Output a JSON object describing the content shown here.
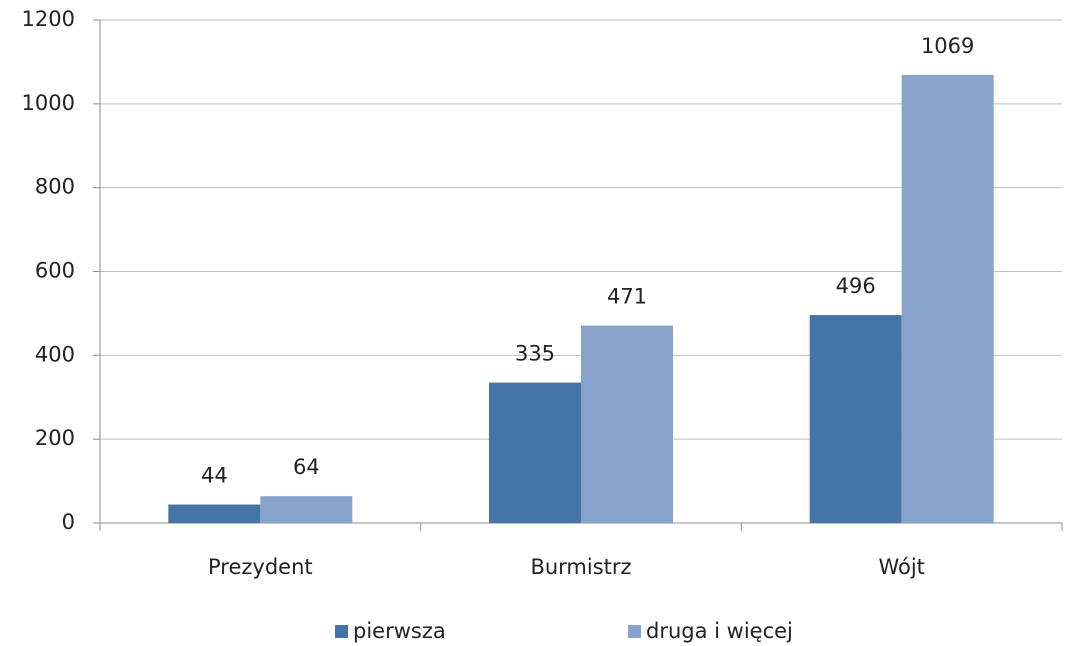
{
  "chart_data": {
    "type": "bar",
    "categories": [
      "Prezydent",
      "Burmistrz",
      "Wójt"
    ],
    "series": [
      {
        "name": "pierwsza",
        "color": "#4574a6",
        "values": [
          44,
          335,
          496
        ]
      },
      {
        "name": "druga i więcej",
        "color": "#87a3cc",
        "values": [
          64,
          471,
          1069
        ]
      }
    ],
    "ylim": [
      0,
      1200
    ],
    "yticks": [
      0,
      200,
      400,
      600,
      800,
      1000,
      1200
    ],
    "grid": true,
    "legend": "bottom"
  }
}
